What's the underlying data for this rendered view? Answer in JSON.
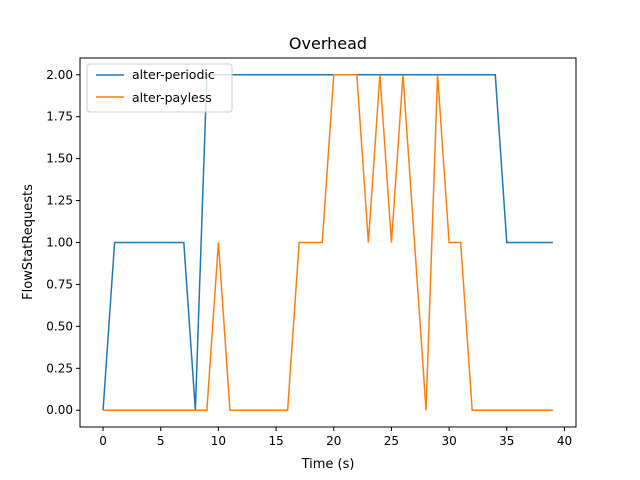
{
  "chart_data": {
    "type": "line",
    "title": "Overhead",
    "xlabel": "Time (s)",
    "ylabel": "FlowStatRequests",
    "xlim": [
      -2,
      41
    ],
    "ylim": [
      -0.1,
      2.1
    ],
    "xticks": [
      0,
      5,
      10,
      15,
      20,
      25,
      30,
      35,
      40
    ],
    "yticks": [
      0.0,
      0.25,
      0.5,
      0.75,
      1.0,
      1.25,
      1.5,
      1.75,
      2.0
    ],
    "grid": false,
    "legend_position": "top-left",
    "series": [
      {
        "name": "alter-periodic",
        "color": "#1f77b4",
        "x": [
          0,
          1,
          2,
          3,
          4,
          5,
          6,
          7,
          8,
          9,
          10,
          11,
          12,
          13,
          14,
          15,
          16,
          17,
          18,
          19,
          20,
          21,
          22,
          23,
          24,
          25,
          26,
          27,
          28,
          29,
          30,
          31,
          32,
          33,
          34,
          35,
          36,
          37,
          38,
          39
        ],
        "y": [
          0,
          1,
          1,
          1,
          1,
          1,
          1,
          1,
          0,
          2,
          2,
          2,
          2,
          2,
          2,
          2,
          2,
          2,
          2,
          2,
          2,
          2,
          2,
          2,
          2,
          2,
          2,
          2,
          2,
          2,
          2,
          2,
          2,
          2,
          2,
          1,
          1,
          1,
          1,
          1
        ]
      },
      {
        "name": "alter-payless",
        "color": "#ff7f0e",
        "x": [
          0,
          1,
          2,
          3,
          4,
          5,
          6,
          7,
          8,
          9,
          10,
          11,
          12,
          13,
          14,
          15,
          16,
          17,
          18,
          19,
          20,
          21,
          22,
          23,
          24,
          25,
          26,
          27,
          28,
          29,
          30,
          31,
          32,
          33,
          34,
          35,
          36,
          37,
          38,
          39
        ],
        "y": [
          0,
          0,
          0,
          0,
          0,
          0,
          0,
          0,
          0,
          0,
          1,
          0,
          0,
          0,
          0,
          0,
          0,
          1,
          1,
          1,
          2,
          2,
          2,
          1,
          2,
          1,
          2,
          1,
          0,
          2,
          1,
          1,
          0,
          0,
          0,
          0,
          0,
          0,
          0,
          0
        ]
      }
    ]
  }
}
